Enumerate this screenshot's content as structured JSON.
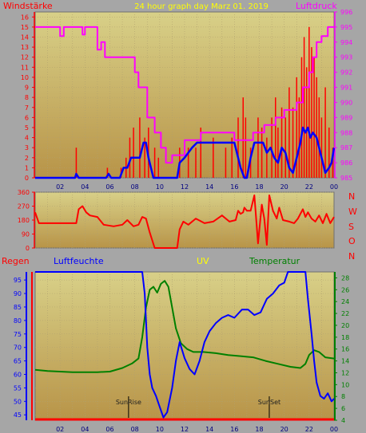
{
  "colors": {
    "background": "#a6a6a6",
    "plot_gradient_top": "#d8d088",
    "plot_gradient_bottom": "#b89448",
    "grid": "#b0a070",
    "wind": "#ff0000",
    "wind_avg": "#0000ff",
    "pressure": "#ff00ff",
    "direction": "#ff0000",
    "humidity": "#0000ff",
    "temperature": "#008000",
    "uv": "#ffff00",
    "rain": "#ff0000",
    "sun": "#000000"
  },
  "labels": {
    "top_title": "24 hour graph day   Marz 01. 2019",
    "wind_label": "Windstärke",
    "pressure_label": "Luftdruck",
    "dir_letters": [
      "N",
      "W",
      "S",
      "O",
      "N"
    ],
    "rain_label": "Regen",
    "humidity_label": "Luftfeuchte",
    "uv_label": "UV",
    "temp_label": "Temperatur",
    "sunrise": "SunRise",
    "sunset": "SunSet"
  },
  "chart_data": [
    {
      "type": "line",
      "name": "wind-pressure",
      "x_ticks": [
        "02",
        "04",
        "06",
        "08",
        "10",
        "12",
        "14",
        "16",
        "18",
        "20",
        "22",
        "00"
      ],
      "y_left_ticks": [
        "0",
        "1",
        "2",
        "3",
        "4",
        "5",
        "6",
        "7",
        "8",
        "9",
        "10",
        "11",
        "12",
        "13",
        "14",
        "15",
        "16"
      ],
      "y_right_ticks": [
        "985",
        "986",
        "987",
        "988",
        "989",
        "990",
        "991",
        "992",
        "993",
        "994",
        "995",
        "996"
      ],
      "ylim_left": [
        0,
        16.5
      ],
      "ylim_right": [
        985,
        996
      ],
      "grid": true,
      "pressure": [
        [
          0,
          995
        ],
        [
          2,
          995
        ],
        [
          2,
          994.4
        ],
        [
          2.3,
          994.4
        ],
        [
          2.3,
          995
        ],
        [
          3.8,
          995
        ],
        [
          3.8,
          994.5
        ],
        [
          4,
          994.5
        ],
        [
          4,
          995
        ],
        [
          5,
          995
        ],
        [
          5,
          993.5
        ],
        [
          5.3,
          993.5
        ],
        [
          5.3,
          994
        ],
        [
          5.6,
          994
        ],
        [
          5.6,
          993
        ],
        [
          7,
          993
        ],
        [
          7,
          993
        ],
        [
          8,
          993
        ],
        [
          8,
          992
        ],
        [
          8.3,
          992
        ],
        [
          8.3,
          991
        ],
        [
          9,
          991
        ],
        [
          9,
          989
        ],
        [
          9.6,
          989
        ],
        [
          9.6,
          988
        ],
        [
          10.1,
          988
        ],
        [
          10.1,
          987
        ],
        [
          10.5,
          987
        ],
        [
          10.5,
          986
        ],
        [
          11,
          986
        ],
        [
          11,
          986.5
        ],
        [
          12,
          986.5
        ],
        [
          12,
          987.5
        ],
        [
          13.3,
          987.5
        ],
        [
          13.3,
          988
        ],
        [
          16,
          988
        ],
        [
          16,
          987.5
        ],
        [
          17.5,
          987.5
        ],
        [
          17.5,
          988
        ],
        [
          18.4,
          988
        ],
        [
          18.4,
          988.5
        ],
        [
          19.3,
          988.5
        ],
        [
          19.3,
          989
        ],
        [
          20,
          989
        ],
        [
          20,
          989.5
        ],
        [
          21,
          989.5
        ],
        [
          21,
          990
        ],
        [
          21.5,
          990
        ],
        [
          21.5,
          991
        ],
        [
          22,
          991
        ],
        [
          22,
          992
        ],
        [
          22.3,
          992
        ],
        [
          22.3,
          993
        ],
        [
          22.6,
          993
        ],
        [
          22.6,
          994
        ],
        [
          23,
          994
        ],
        [
          23,
          994.4
        ],
        [
          23.5,
          994.4
        ],
        [
          23.5,
          995
        ],
        [
          24,
          995
        ]
      ],
      "wind_max_spikes": [
        [
          3.3,
          3
        ],
        [
          5.8,
          1
        ],
        [
          6.9,
          1
        ],
        [
          7.3,
          2
        ],
        [
          7.6,
          4
        ],
        [
          7.9,
          5
        ],
        [
          8.4,
          6
        ],
        [
          8.8,
          4
        ],
        [
          9.1,
          5
        ],
        [
          9.6,
          3
        ],
        [
          9.9,
          2
        ],
        [
          11.6,
          3
        ],
        [
          12.3,
          3
        ],
        [
          12.9,
          3
        ],
        [
          13.3,
          5
        ],
        [
          14.3,
          4
        ],
        [
          15.3,
          3
        ],
        [
          15.8,
          4
        ],
        [
          16.3,
          6
        ],
        [
          16.7,
          8
        ],
        [
          16.9,
          6
        ],
        [
          17.3,
          3
        ],
        [
          17.9,
          6
        ],
        [
          18.2,
          5
        ],
        [
          18.6,
          4
        ],
        [
          19,
          6
        ],
        [
          19.3,
          8
        ],
        [
          19.5,
          5
        ],
        [
          19.8,
          7
        ],
        [
          20.1,
          6
        ],
        [
          20.4,
          9
        ],
        [
          20.7,
          7
        ],
        [
          21,
          10
        ],
        [
          21.2,
          8
        ],
        [
          21.4,
          12
        ],
        [
          21.6,
          14
        ],
        [
          21.8,
          11
        ],
        [
          22,
          15
        ],
        [
          22.2,
          13
        ],
        [
          22.4,
          12
        ],
        [
          22.6,
          10
        ],
        [
          22.8,
          8
        ],
        [
          23,
          6
        ],
        [
          23.3,
          9
        ],
        [
          23.6,
          5
        ],
        [
          23.9,
          3
        ]
      ],
      "wind_avg": [
        [
          0,
          0
        ],
        [
          3.2,
          0
        ],
        [
          3.3,
          0.4
        ],
        [
          3.5,
          0
        ],
        [
          5.7,
          0
        ],
        [
          5.9,
          0.4
        ],
        [
          6.1,
          0
        ],
        [
          6.8,
          0
        ],
        [
          7.1,
          1
        ],
        [
          7.4,
          1
        ],
        [
          7.7,
          2
        ],
        [
          8.4,
          2
        ],
        [
          8.7,
          3.5
        ],
        [
          8.9,
          3.5
        ],
        [
          9.1,
          2
        ],
        [
          9.3,
          1
        ],
        [
          9.5,
          0
        ],
        [
          11.4,
          0
        ],
        [
          11.6,
          1.5
        ],
        [
          12,
          2
        ],
        [
          12.6,
          3
        ],
        [
          13,
          3.5
        ],
        [
          16,
          3.5
        ],
        [
          16.2,
          2.5
        ],
        [
          16.5,
          1
        ],
        [
          16.8,
          0
        ],
        [
          17,
          0
        ],
        [
          17.3,
          2
        ],
        [
          17.6,
          3.5
        ],
        [
          18.3,
          3.5
        ],
        [
          18.6,
          2.5
        ],
        [
          18.9,
          3
        ],
        [
          19.2,
          2
        ],
        [
          19.5,
          1.5
        ],
        [
          19.8,
          3
        ],
        [
          20.1,
          2.5
        ],
        [
          20.4,
          1
        ],
        [
          20.7,
          0.5
        ],
        [
          21,
          2
        ],
        [
          21.3,
          3.5
        ],
        [
          21.5,
          5
        ],
        [
          21.7,
          4.5
        ],
        [
          21.9,
          5
        ],
        [
          22.1,
          4
        ],
        [
          22.3,
          4.5
        ],
        [
          22.6,
          4
        ],
        [
          22.8,
          3
        ],
        [
          23,
          2
        ],
        [
          23.3,
          0.5
        ],
        [
          23.6,
          1
        ],
        [
          23.8,
          1.5
        ],
        [
          24,
          3
        ]
      ]
    },
    {
      "type": "line",
      "name": "wind-direction",
      "y_ticks": [
        "0",
        "90",
        "180",
        "270",
        "360"
      ],
      "ylim": [
        0,
        360
      ],
      "grid": true,
      "direction": [
        [
          0,
          230
        ],
        [
          0.3,
          160
        ],
        [
          3.3,
          160
        ],
        [
          3.5,
          250
        ],
        [
          3.8,
          270
        ],
        [
          4.1,
          230
        ],
        [
          4.4,
          210
        ],
        [
          5,
          200
        ],
        [
          5.5,
          150
        ],
        [
          6.3,
          140
        ],
        [
          7,
          150
        ],
        [
          7.4,
          180
        ],
        [
          7.9,
          140
        ],
        [
          8.3,
          150
        ],
        [
          8.6,
          200
        ],
        [
          8.9,
          190
        ],
        [
          9.2,
          100
        ],
        [
          9.6,
          0
        ],
        [
          11.4,
          0
        ],
        [
          11.6,
          120
        ],
        [
          11.9,
          170
        ],
        [
          12.3,
          150
        ],
        [
          12.9,
          190
        ],
        [
          13.6,
          160
        ],
        [
          14.3,
          170
        ],
        [
          15,
          210
        ],
        [
          15.6,
          170
        ],
        [
          16.1,
          180
        ],
        [
          16.3,
          240
        ],
        [
          16.5,
          220
        ],
        [
          16.7,
          230
        ],
        [
          16.8,
          260
        ],
        [
          17,
          240
        ],
        [
          17.3,
          240
        ],
        [
          17.6,
          340
        ],
        [
          17.9,
          30
        ],
        [
          18.2,
          280
        ],
        [
          18.4,
          190
        ],
        [
          18.6,
          20
        ],
        [
          18.8,
          340
        ],
        [
          19.1,
          240
        ],
        [
          19.4,
          190
        ],
        [
          19.6,
          260
        ],
        [
          19.9,
          180
        ],
        [
          20.4,
          170
        ],
        [
          20.8,
          160
        ],
        [
          21.1,
          190
        ],
        [
          21.3,
          220
        ],
        [
          21.5,
          250
        ],
        [
          21.7,
          200
        ],
        [
          21.9,
          230
        ],
        [
          22.2,
          190
        ],
        [
          22.5,
          170
        ],
        [
          22.8,
          210
        ],
        [
          23.1,
          160
        ],
        [
          23.4,
          220
        ],
        [
          23.7,
          160
        ],
        [
          24,
          200
        ]
      ]
    },
    {
      "type": "line",
      "name": "humidity-temperature",
      "y_left_ticks": [
        "45",
        "50",
        "55",
        "60",
        "65",
        "70",
        "75",
        "80",
        "85",
        "90",
        "95"
      ],
      "y_right_ticks": [
        "4",
        "6",
        "8",
        "10",
        "12",
        "14",
        "16",
        "18",
        "20",
        "22",
        "24",
        "26",
        "28"
      ],
      "ylim_left": [
        43,
        98
      ],
      "ylim_right": [
        4,
        29
      ],
      "grid": true,
      "humidity": [
        [
          0,
          98
        ],
        [
          8.6,
          98
        ],
        [
          8.8,
          90
        ],
        [
          9,
          70
        ],
        [
          9.2,
          60
        ],
        [
          9.4,
          55
        ],
        [
          9.7,
          52
        ],
        [
          10,
          48
        ],
        [
          10.3,
          44
        ],
        [
          10.6,
          46
        ],
        [
          11,
          55
        ],
        [
          11.3,
          65
        ],
        [
          11.6,
          72
        ],
        [
          12,
          66
        ],
        [
          12.4,
          62
        ],
        [
          12.8,
          60
        ],
        [
          13.2,
          65
        ],
        [
          13.6,
          72
        ],
        [
          14,
          76
        ],
        [
          14.5,
          79
        ],
        [
          15,
          81
        ],
        [
          15.5,
          82
        ],
        [
          16,
          81
        ],
        [
          16.6,
          84
        ],
        [
          17.1,
          84
        ],
        [
          17.6,
          82
        ],
        [
          18.1,
          83
        ],
        [
          18.6,
          88
        ],
        [
          19.1,
          90
        ],
        [
          19.6,
          93
        ],
        [
          20,
          94
        ],
        [
          20.3,
          98
        ],
        [
          21.7,
          98
        ],
        [
          21.9,
          88
        ],
        [
          22.2,
          75
        ],
        [
          22.4,
          65
        ],
        [
          22.6,
          57
        ],
        [
          22.9,
          52
        ],
        [
          23.2,
          51
        ],
        [
          23.5,
          53
        ],
        [
          23.8,
          50
        ],
        [
          24,
          51
        ]
      ],
      "temperature": [
        [
          0,
          12.5
        ],
        [
          1,
          12.3
        ],
        [
          2,
          12.2
        ],
        [
          3,
          12.1
        ],
        [
          4,
          12.1
        ],
        [
          5,
          12.1
        ],
        [
          6,
          12.2
        ],
        [
          7,
          12.8
        ],
        [
          7.8,
          13.6
        ],
        [
          8.3,
          14.4
        ],
        [
          8.6,
          18
        ],
        [
          8.9,
          23
        ],
        [
          9.2,
          26
        ],
        [
          9.5,
          26.5
        ],
        [
          9.8,
          25.5
        ],
        [
          10.1,
          27
        ],
        [
          10.4,
          27.5
        ],
        [
          10.7,
          26.5
        ],
        [
          11,
          23
        ],
        [
          11.3,
          19.5
        ],
        [
          11.7,
          17
        ],
        [
          12.2,
          16
        ],
        [
          12.7,
          15.5
        ],
        [
          13.5,
          15.5
        ],
        [
          14.5,
          15.3
        ],
        [
          15.5,
          15
        ],
        [
          16.5,
          14.8
        ],
        [
          17.5,
          14.6
        ],
        [
          18.5,
          14
        ],
        [
          19.5,
          13.5
        ],
        [
          20.5,
          13
        ],
        [
          21.3,
          12.8
        ],
        [
          21.7,
          13.5
        ],
        [
          22,
          15
        ],
        [
          22.4,
          15.8
        ],
        [
          22.8,
          15.5
        ],
        [
          23.3,
          14.6
        ],
        [
          24,
          14.4
        ]
      ],
      "uv": [
        [
          0,
          0
        ],
        [
          24,
          0
        ]
      ],
      "rain": [
        [
          0,
          0
        ],
        [
          24,
          0
        ]
      ],
      "sunrise_hour": 7.5,
      "sunset_hour": 18.8
    }
  ]
}
